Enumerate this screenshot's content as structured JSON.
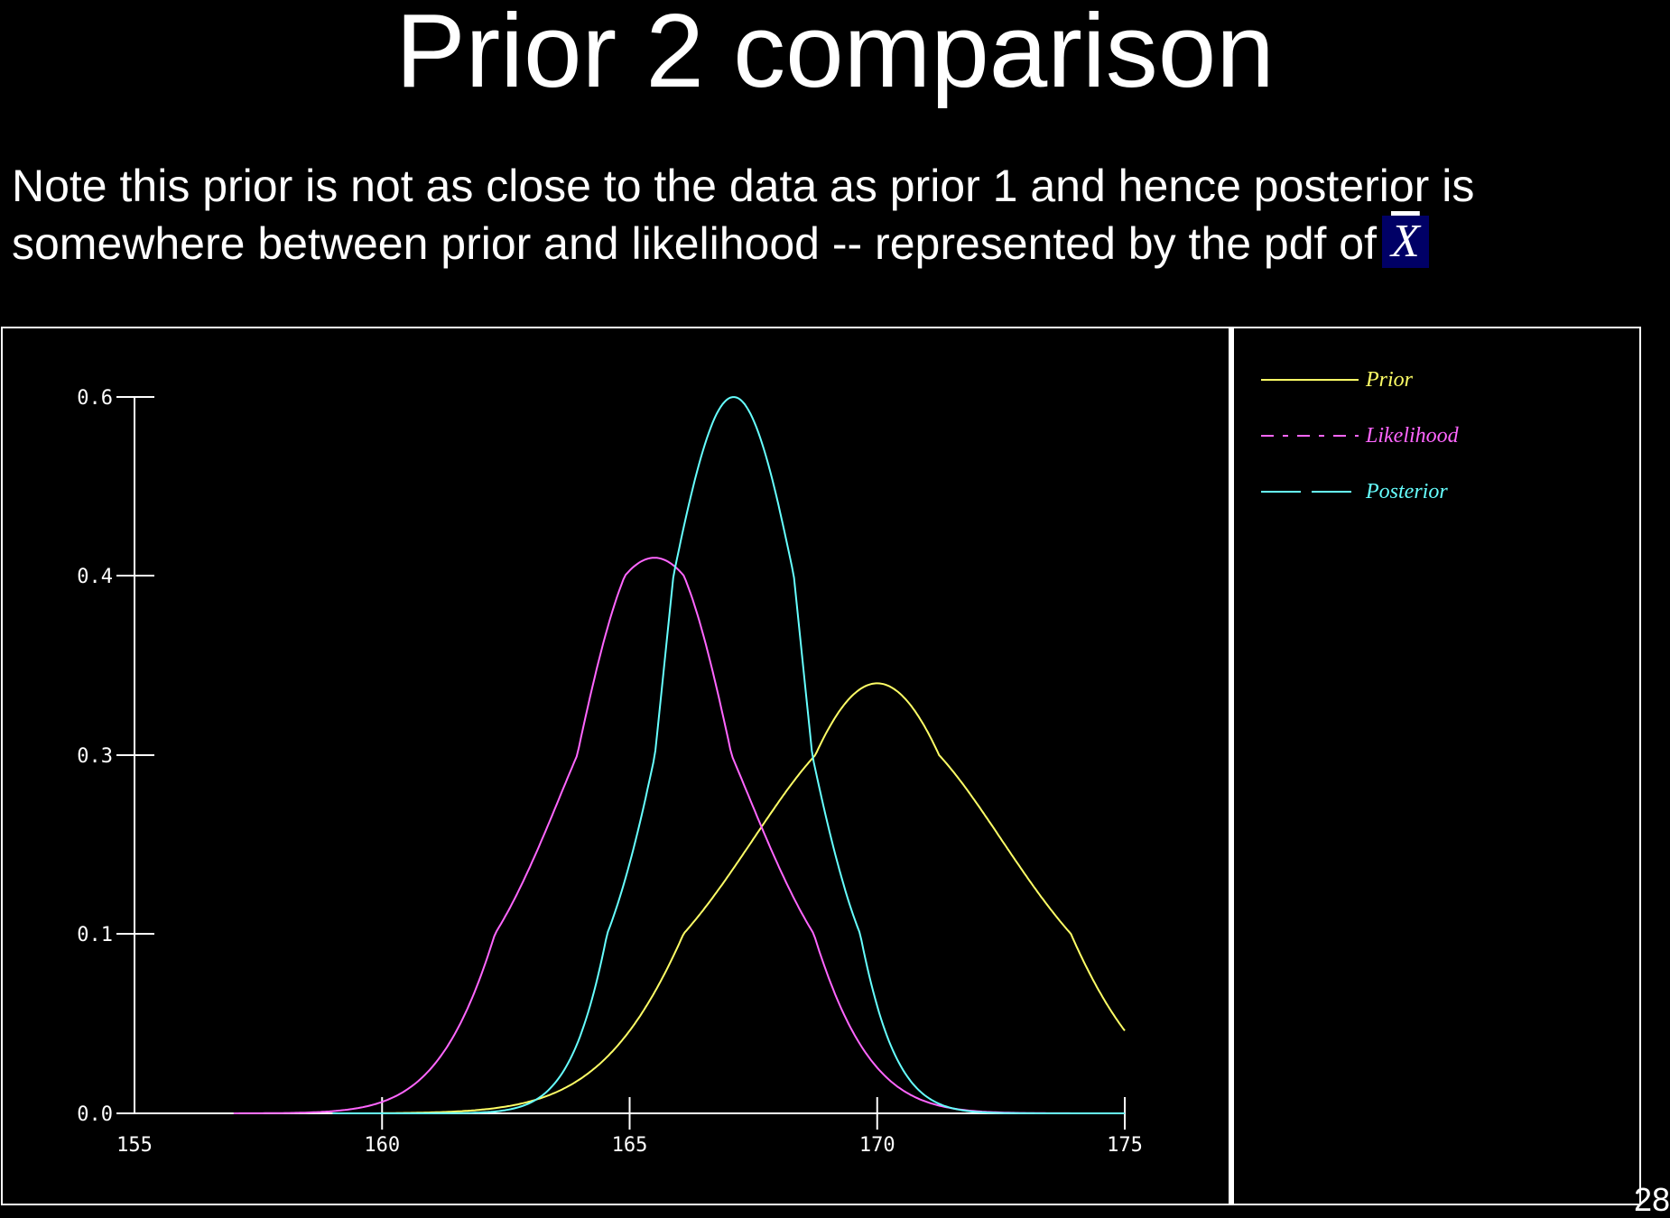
{
  "slide": {
    "title": "Prior 2 comparison",
    "body_text": "Note this prior is not as close to the data as prior 1 and hence posterior is somewhere between prior and likelihood -- represented by the pdf of",
    "xbar_symbol": "X",
    "page_number": "28"
  },
  "colors": {
    "background": "#000000",
    "prior": "#ffff66",
    "likelihood": "#ff66ff",
    "posterior": "#66ffff",
    "axis": "#ffffff",
    "xbar_badge": "#000066"
  },
  "chart_data": {
    "type": "line",
    "title": "",
    "xlabel": "",
    "ylabel": "",
    "xlim": [
      155,
      175
    ],
    "x_ticks": [
      155,
      160,
      165,
      170,
      175
    ],
    "x_tick_labels": [
      "155",
      "160",
      "165",
      "170",
      "175"
    ],
    "y_ticks": [
      0.0,
      0.1,
      0.3,
      0.4,
      0.6
    ],
    "y_tick_labels": [
      "0.0",
      "0.1",
      "0.3",
      "0.4",
      "0.6"
    ],
    "grid": false,
    "legend_placement": "right panel, top",
    "series": [
      {
        "name": "Prior",
        "color": "#ffff66",
        "line_style": "solid",
        "distribution": "normal",
        "mean": 170,
        "sd": 2.5,
        "x_range": [
          160,
          175
        ],
        "points": [
          [
            160,
            0.002
          ],
          [
            162,
            0.009
          ],
          [
            164,
            0.042
          ],
          [
            165,
            0.06
          ],
          [
            166,
            0.12
          ],
          [
            167,
            0.17
          ],
          [
            168,
            0.24
          ],
          [
            169,
            0.3
          ],
          [
            170,
            0.34
          ],
          [
            171,
            0.315
          ],
          [
            172,
            0.26
          ],
          [
            173,
            0.18
          ],
          [
            174,
            0.11
          ],
          [
            175,
            0.06
          ]
        ]
      },
      {
        "name": "Likelihood",
        "color": "#ff66ff",
        "line_style": "dash-dot",
        "distribution": "normal",
        "mean": 165.5,
        "sd": 1.9,
        "x_range": [
          157,
          175
        ],
        "points": [
          [
            157,
            0.0
          ],
          [
            158,
            0.002
          ],
          [
            159,
            0.005
          ],
          [
            160,
            0.015
          ],
          [
            161,
            0.05
          ],
          [
            162,
            0.1
          ],
          [
            163,
            0.2
          ],
          [
            164,
            0.3
          ],
          [
            165,
            0.39
          ],
          [
            165.5,
            0.42
          ],
          [
            166,
            0.4
          ],
          [
            167,
            0.34
          ],
          [
            168,
            0.23
          ],
          [
            169,
            0.13
          ],
          [
            170,
            0.07
          ],
          [
            171,
            0.03
          ],
          [
            172,
            0.01
          ],
          [
            173,
            0.002
          ],
          [
            174,
            0.0
          ]
        ]
      },
      {
        "name": "Posterior",
        "color": "#66ffff",
        "line_style": "long-dash",
        "distribution": "normal",
        "mean": 167.1,
        "sd": 1.35,
        "x_range": [
          159,
          175
        ],
        "points": [
          [
            159,
            0.0
          ],
          [
            161,
            0.002
          ],
          [
            162,
            0.009
          ],
          [
            163,
            0.04
          ],
          [
            164,
            0.12
          ],
          [
            165,
            0.27
          ],
          [
            166,
            0.46
          ],
          [
            167,
            0.595
          ],
          [
            167.1,
            0.6
          ],
          [
            168,
            0.51
          ],
          [
            169,
            0.32
          ],
          [
            170,
            0.14
          ],
          [
            171,
            0.05
          ],
          [
            172,
            0.015
          ],
          [
            173,
            0.003
          ],
          [
            174,
            0.0
          ]
        ]
      }
    ]
  }
}
